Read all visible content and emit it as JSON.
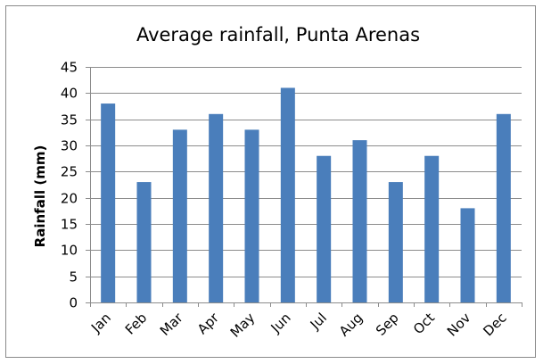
{
  "chart_data": {
    "type": "bar",
    "title": "Average rainfall, Punta Arenas",
    "xlabel": "",
    "ylabel": "Rainfall (mm)",
    "categories": [
      "Jan",
      "Feb",
      "Mar",
      "Apr",
      "May",
      "Jun",
      "Jul",
      "Aug",
      "Sep",
      "Oct",
      "Nov",
      "Dec"
    ],
    "values": [
      38,
      23,
      33,
      36,
      33,
      41,
      28,
      31,
      23,
      28,
      18,
      36
    ],
    "ylim": [
      0,
      45
    ],
    "yticks": [
      0,
      5,
      10,
      15,
      20,
      25,
      30,
      35,
      40,
      45
    ],
    "grid": true,
    "legend": "none",
    "bar_color": "#4a7ebb"
  }
}
